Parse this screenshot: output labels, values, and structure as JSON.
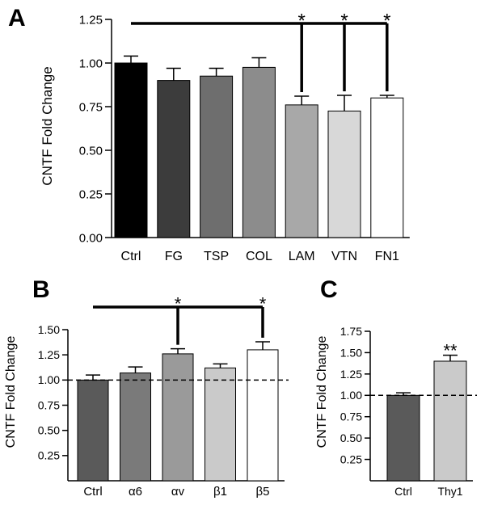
{
  "chart_data": [
    {
      "type": "bar",
      "panel_label": "A",
      "ylabel": "CNTF Fold Change",
      "ylim": [
        0,
        1.25
      ],
      "yticks": [
        "0.00",
        "0.25",
        "0.50",
        "0.75",
        "1.00",
        "1.25"
      ],
      "categories": [
        "Ctrl",
        "FG",
        "TSP",
        "COL",
        "LAM",
        "VTN",
        "FN1"
      ],
      "values": [
        1.0,
        0.9,
        0.925,
        0.975,
        0.76,
        0.725,
        0.8
      ],
      "errors": [
        0.04,
        0.07,
        0.045,
        0.055,
        0.05,
        0.09,
        0.015
      ],
      "colors": [
        "#000000",
        "#3c3c3c",
        "#6e6e6e",
        "#8c8c8c",
        "#a8a8a8",
        "#d8d8d8",
        "#ffffff"
      ],
      "reference_line": null,
      "significance": {
        "from": "Ctrl",
        "targets": [
          "LAM",
          "VTN",
          "FN1"
        ],
        "marks": [
          "*",
          "*",
          "*"
        ]
      }
    },
    {
      "type": "bar",
      "panel_label": "B",
      "ylabel": "CNTF Fold Change",
      "ylim": [
        0,
        1.5
      ],
      "yticks": [
        "0.25",
        "0.50",
        "0.75",
        "1.00",
        "1.25",
        "1.50"
      ],
      "categories": [
        "Ctrl",
        "α6",
        "αv",
        "β1",
        "β5"
      ],
      "values": [
        1.0,
        1.07,
        1.26,
        1.12,
        1.3
      ],
      "errors": [
        0.05,
        0.06,
        0.05,
        0.04,
        0.08
      ],
      "colors": [
        "#5a5a5a",
        "#7a7a7a",
        "#9a9a9a",
        "#cacaca",
        "#ffffff"
      ],
      "reference_line": 1.0,
      "significance": {
        "from": "Ctrl",
        "targets": [
          "αv",
          "β5"
        ],
        "marks": [
          "*",
          "*"
        ]
      }
    },
    {
      "type": "bar",
      "panel_label": "C",
      "ylabel": "CNTF Fold Change",
      "ylim": [
        0,
        1.75
      ],
      "yticks": [
        "0.25",
        "0.50",
        "0.75",
        "1.00",
        "1.25",
        "1.50",
        "1.75"
      ],
      "categories": [
        "Ctrl",
        "Thy1"
      ],
      "values": [
        1.0,
        1.4
      ],
      "errors": [
        0.03,
        0.07
      ],
      "colors": [
        "#5a5a5a",
        "#cacaca"
      ],
      "reference_line": 1.0,
      "significance": {
        "from": null,
        "targets": [
          "Thy1"
        ],
        "marks": [
          "**"
        ]
      }
    }
  ]
}
